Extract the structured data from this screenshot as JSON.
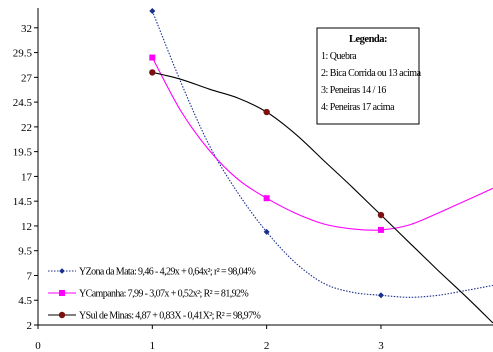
{
  "chart_data": {
    "type": "line",
    "title": "",
    "xlabel": "",
    "ylabel": "",
    "xlim": [
      0,
      3.98
    ],
    "ylim": [
      2,
      34
    ],
    "x_ticks": [
      "0",
      "1",
      "2",
      "3"
    ],
    "y_ticks": [
      "2",
      "4.5",
      "7",
      "9.5",
      "12",
      "14.5",
      "17",
      "19.5",
      "22",
      "24.5",
      "27",
      "29.5",
      "32"
    ],
    "grid": false,
    "legend_position": "bottom-left",
    "series": [
      {
        "name": "YZona da Mata: 9,46 - 4,29x + 0,64x²; r² = 98,04%",
        "color": "#1a2f8c",
        "marker": "diamond",
        "line_style": "dotted",
        "x": [
          1,
          2,
          3
        ],
        "y": [
          33.7,
          11.4,
          5.0
        ],
        "curve_x": [
          1.0,
          1.25,
          1.5,
          1.75,
          2.0,
          2.25,
          2.5,
          2.75,
          3.0,
          3.25,
          3.5,
          3.75,
          3.98
        ],
        "curve_y": [
          33.7,
          26.5,
          20.1,
          15.3,
          11.4,
          8.3,
          6.2,
          5.3,
          5.0,
          4.8,
          5.0,
          5.5,
          6.0
        ]
      },
      {
        "name": "YCampanha: 7,99 - 3,07x + 0,52x²; R² = 81,92%",
        "color": "#ff00ff",
        "marker": "square",
        "line_style": "solid",
        "x": [
          1,
          2,
          3
        ],
        "y": [
          29.0,
          14.8,
          11.6
        ],
        "curve_x": [
          1.0,
          1.25,
          1.5,
          1.75,
          2.0,
          2.25,
          2.5,
          2.75,
          3.0,
          3.25,
          3.5,
          3.75,
          3.98
        ],
        "curve_y": [
          29.0,
          23.6,
          19.6,
          16.7,
          14.8,
          13.3,
          12.2,
          11.7,
          11.6,
          12.1,
          13.3,
          14.6,
          15.8
        ]
      },
      {
        "name": "YSul de Minas: 4,87 + 0,83X - 0,41X²; R² = 98,97%",
        "color": "#7a1010",
        "marker": "circle",
        "line_style": "solid",
        "x": [
          1,
          2,
          3
        ],
        "y": [
          27.5,
          23.5,
          13.1
        ],
        "curve_x": [
          1.0,
          1.25,
          1.5,
          1.75,
          2.0,
          2.25,
          2.5,
          2.75,
          3.0,
          3.25,
          3.5,
          3.75,
          3.98
        ],
        "curve_y": [
          27.5,
          26.8,
          25.8,
          24.9,
          23.5,
          21.3,
          18.6,
          15.9,
          13.1,
          10.3,
          7.5,
          4.8,
          2.2
        ]
      }
    ],
    "annotation_box": {
      "title": "Legenda:",
      "items": [
        "1: Quebra",
        "2: Bica Corrida ou 13 acima",
        "3: Peneiras 14 / 16",
        "4: Peneiras 17 acima"
      ]
    }
  }
}
